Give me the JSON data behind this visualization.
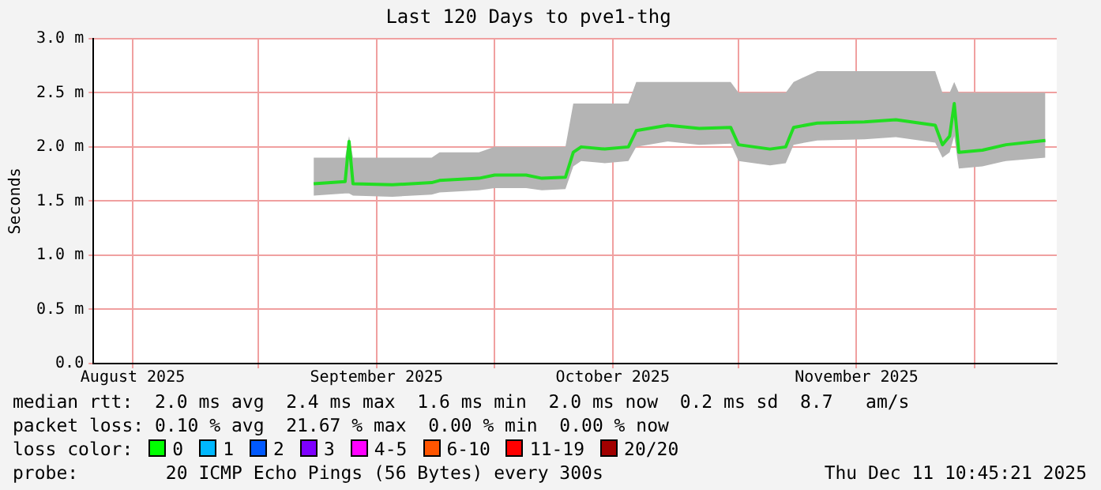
{
  "chart_data": {
    "type": "line",
    "title": "Last 120 Days to pve1-thg",
    "ylabel": "Seconds",
    "xlim": [
      "2025-08-11",
      "2025-12-11T10:45"
    ],
    "xticks": [
      {
        "value": "2025-08-16",
        "label": "August 2025"
      },
      {
        "value": "2025-09-01",
        "label": null
      },
      {
        "value": "2025-09-16",
        "label": "September 2025"
      },
      {
        "value": "2025-10-01",
        "label": null
      },
      {
        "value": "2025-10-16",
        "label": "October 2025"
      },
      {
        "value": "2025-11-01",
        "label": null
      },
      {
        "value": "2025-11-16",
        "label": "November 2025"
      },
      {
        "value": "2025-12-01",
        "label": null
      }
    ],
    "ylim": [
      0,
      3
    ],
    "yticks": [
      {
        "value": 0,
        "label": "0.0"
      },
      {
        "value": 0.5,
        "label": "0.5 m"
      },
      {
        "value": 1,
        "label": "1.0 m"
      },
      {
        "value": 1.5,
        "label": "1.5 m"
      },
      {
        "value": 2,
        "label": "2.0 m"
      },
      {
        "value": 2.5,
        "label": "2.5 m"
      },
      {
        "value": 3,
        "label": "3.0 m"
      }
    ],
    "grid": true,
    "legend": false,
    "marker": "none",
    "line_style": "solid",
    "series": [
      {
        "color": "#22dd22",
        "x": [
          "2025-09-08",
          "2025-09-12",
          "2025-09-12T12:00",
          "2025-09-13",
          "2025-09-18",
          "2025-09-23",
          "2025-09-24",
          "2025-09-29",
          "2025-10-01",
          "2025-10-05",
          "2025-10-07",
          "2025-10-10",
          "2025-10-11",
          "2025-10-12",
          "2025-10-15",
          "2025-10-18",
          "2025-10-19",
          "2025-10-23",
          "2025-10-27",
          "2025-10-31",
          "2025-11-01",
          "2025-11-05",
          "2025-11-07",
          "2025-11-08",
          "2025-11-11",
          "2025-11-17",
          "2025-11-21",
          "2025-11-26",
          "2025-11-26T22:00",
          "2025-11-27T20:00",
          "2025-11-28T10:00",
          "2025-11-29",
          "2025-12-02",
          "2025-12-05",
          "2025-12-10"
        ],
        "values": [
          1.66,
          1.68,
          2.05,
          1.66,
          1.65,
          1.67,
          1.69,
          1.71,
          1.74,
          1.74,
          1.71,
          1.72,
          1.95,
          2.0,
          1.98,
          2.0,
          2.15,
          2.2,
          2.17,
          2.18,
          2.02,
          1.98,
          2.0,
          2.18,
          2.22,
          2.23,
          2.25,
          2.2,
          2.02,
          2.1,
          2.4,
          1.95,
          1.97,
          2.02,
          2.06
        ],
        "lower": [
          1.55,
          1.57,
          1.57,
          1.55,
          1.54,
          1.56,
          1.58,
          1.6,
          1.62,
          1.62,
          1.6,
          1.61,
          1.82,
          1.87,
          1.85,
          1.87,
          2.0,
          2.05,
          2.02,
          2.03,
          1.87,
          1.83,
          1.85,
          2.02,
          2.06,
          2.07,
          2.09,
          2.04,
          1.9,
          1.95,
          2.1,
          1.8,
          1.82,
          1.87,
          1.9
        ],
        "upper": [
          1.9,
          1.9,
          2.1,
          1.9,
          1.9,
          1.9,
          1.95,
          1.95,
          2.0,
          2.0,
          2.0,
          2.0,
          2.4,
          2.4,
          2.4,
          2.4,
          2.6,
          2.6,
          2.6,
          2.6,
          2.5,
          2.5,
          2.5,
          2.6,
          2.7,
          2.7,
          2.7,
          2.7,
          2.5,
          2.5,
          2.6,
          2.5,
          2.5,
          2.5,
          2.5
        ]
      }
    ],
    "annotations": [
      "median rtt:  2.0 ms avg  2.4 ms max  1.6 ms min  2.0 ms now  0.2 ms sd  8.7   am/s",
      "packet loss: 0.10 % avg  21.67 % max  0.00 % min  0.00 % now",
      "loss color:",
      "0",
      "1",
      "2",
      "3",
      "4-5",
      "6-10",
      "11-19",
      "20/20",
      "probe:        20 ICMP Echo Pings (56 Bytes) every 300s",
      "Thu Dec 11 10:45:21 2025"
    ]
  }
}
